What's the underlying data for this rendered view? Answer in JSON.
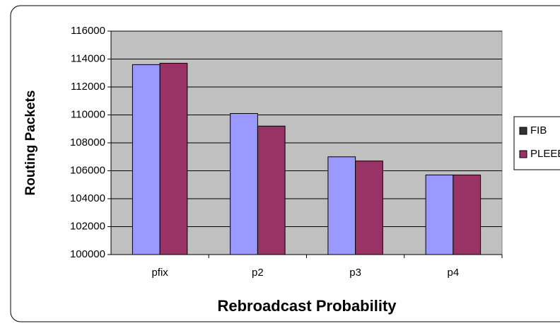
{
  "chart_data": {
    "type": "bar",
    "x_label": "Rebroadcast Probability",
    "y_label": "Routing Packets",
    "categories": [
      "pfix",
      "p2",
      "p3",
      "p4"
    ],
    "series": [
      {
        "name": "FIB",
        "color": "#9999ff",
        "legend_color": "#333333",
        "values": [
          113600,
          110100,
          107000,
          105700
        ]
      },
      {
        "name": "PLEEB",
        "color": "#993366",
        "legend_color": "#993366",
        "values": [
          113700,
          109200,
          106700,
          105700
        ]
      }
    ],
    "ylim": [
      100000,
      116000
    ],
    "yticks": [
      100000,
      102000,
      104000,
      106000,
      108000,
      110000,
      112000,
      114000,
      116000
    ],
    "grid": true,
    "legend": "right"
  }
}
